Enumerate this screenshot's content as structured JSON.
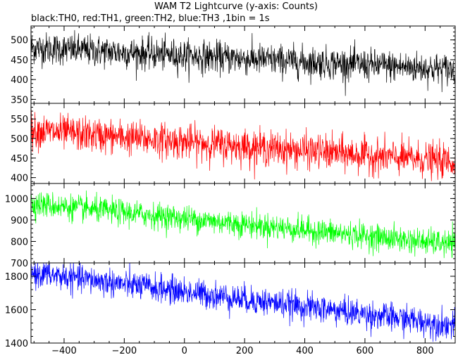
{
  "chart_data": {
    "type": "line",
    "title": "WAM T2 Lightcurve (y-axis: Counts)",
    "subtitle": "black:TH0, red:TH1, green:TH2, blue:TH3 ,1bin = 1s",
    "xlim": [
      -510,
      900
    ],
    "x_ticks": [
      "−400",
      "−200",
      "0",
      "200",
      "400",
      "600",
      "800"
    ],
    "x_tick_values": [
      -400,
      -200,
      0,
      200,
      400,
      600,
      800
    ],
    "bin_seconds": 1,
    "panels": [
      {
        "series_name": "TH0",
        "color": "#000000",
        "ylim": [
          340,
          535
        ],
        "y_ticks": [
          "350",
          "400",
          "450",
          "500"
        ],
        "y_tick_values": [
          350,
          400,
          450,
          500
        ],
        "trend": [
          {
            "x": -500,
            "y": 480
          },
          {
            "x": 900,
            "y": 425
          }
        ],
        "noise_sd": 20
      },
      {
        "series_name": "TH1",
        "color": "#ff0000",
        "ylim": [
          385,
          590
        ],
        "y_ticks": [
          "400",
          "450",
          "500",
          "550"
        ],
        "y_tick_values": [
          400,
          450,
          500,
          550
        ],
        "trend": [
          {
            "x": -500,
            "y": 520
          },
          {
            "x": 900,
            "y": 440
          }
        ],
        "noise_sd": 22
      },
      {
        "series_name": "TH2",
        "color": "#00ff00",
        "ylim": [
          700,
          1070
        ],
        "y_ticks": [
          "700",
          "800",
          "900",
          "1000"
        ],
        "y_tick_values": [
          700,
          800,
          900,
          1000
        ],
        "trend": [
          {
            "x": -500,
            "y": 975
          },
          {
            "x": 900,
            "y": 785
          }
        ],
        "noise_sd": 30
      },
      {
        "series_name": "TH3",
        "color": "#0000ff",
        "ylim": [
          1400,
          1880
        ],
        "y_ticks": [
          "1400",
          "1600",
          "1800"
        ],
        "y_tick_values": [
          1400,
          1600,
          1800
        ],
        "trend": [
          {
            "x": -500,
            "y": 1820
          },
          {
            "x": 900,
            "y": 1505
          }
        ],
        "noise_sd": 42
      }
    ]
  }
}
